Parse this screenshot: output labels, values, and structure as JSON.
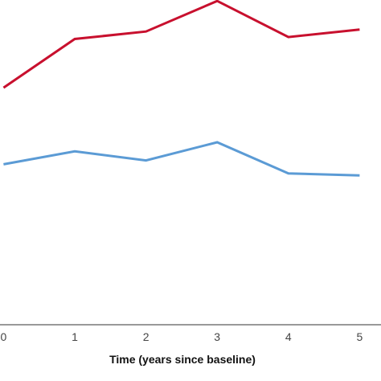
{
  "chart_data": {
    "type": "line",
    "x": [
      0,
      1,
      2,
      3,
      4,
      5
    ],
    "xticks": [
      "0",
      "1",
      "2",
      "3",
      "4",
      "5"
    ],
    "xlim": [
      -0.05,
      5.3
    ],
    "ylim": [
      0,
      100
    ],
    "xlabel": "Time (years since baseline)",
    "ylabel": "",
    "grid": false,
    "series": [
      {
        "color": "#c8102e",
        "values": [
          73,
          88,
          90.3,
          99.7,
          88.6,
          90.9
        ]
      },
      {
        "color": "#5b9bd5",
        "values": [
          49.4,
          53.4,
          50.6,
          56.2,
          46.6,
          46
        ]
      }
    ]
  }
}
